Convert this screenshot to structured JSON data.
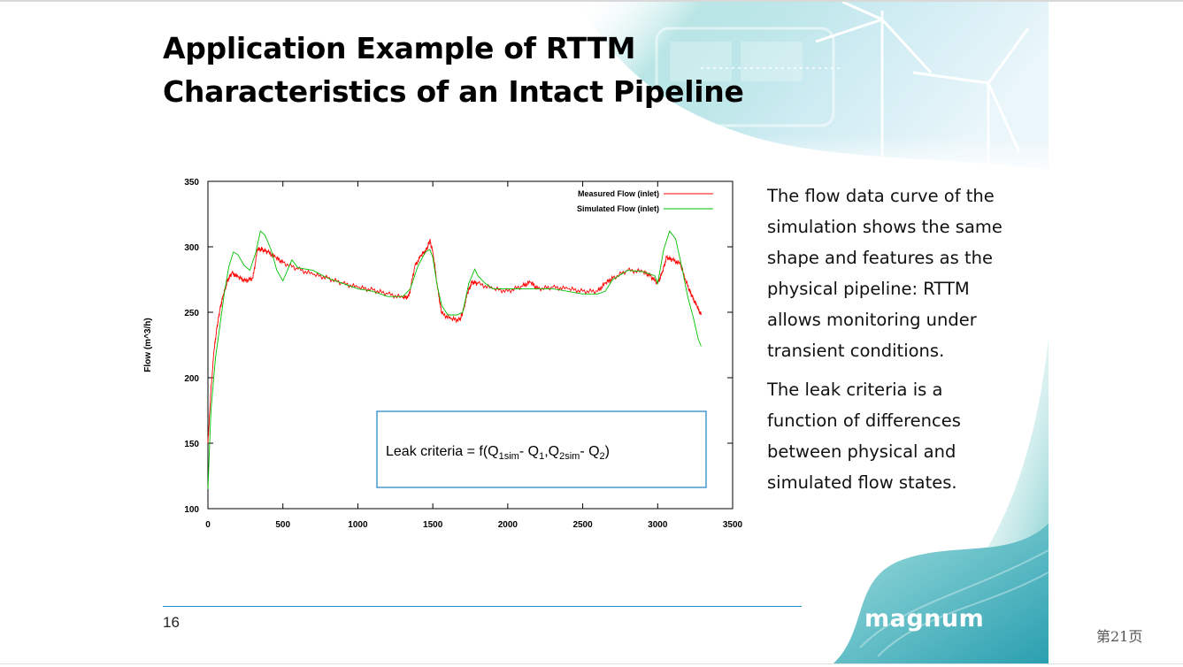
{
  "slide": {
    "title_line1": "Application Example of RTTM",
    "title_line2": "Characteristics of an Intact Pipeline",
    "body_paragraph1": "The flow data curve of the simulation shows the same shape and features as the physical pipeline: RTTM allows monitoring under transient conditions.",
    "body_paragraph2": "The leak criteria is a function of differences between physical and simulated flow states.",
    "slide_number": "16",
    "logo_text": "magnum",
    "accent_color": "#1a8fc7",
    "decoration_color": "#5fc4c4"
  },
  "viewer": {
    "page_indicator": "第21页"
  },
  "chart_data": {
    "type": "line",
    "ylabel": "Flow (m^3/h)",
    "xlabel": "",
    "xlim": [
      0,
      3500
    ],
    "ylim": [
      100,
      350
    ],
    "x_ticks": [
      "0",
      "500",
      "1000",
      "1500",
      "2000",
      "2500",
      "3000",
      "3500"
    ],
    "y_ticks": [
      "100",
      "150",
      "200",
      "250",
      "300",
      "350"
    ],
    "legend_position": "top-right",
    "series": [
      {
        "name": "Measured Flow (inlet)",
        "color": "#ff0000",
        "x": [
          0,
          20,
          40,
          60,
          80,
          100,
          130,
          160,
          200,
          250,
          300,
          330,
          360,
          400,
          450,
          500,
          600,
          700,
          800,
          900,
          1000,
          1100,
          1200,
          1300,
          1340,
          1380,
          1420,
          1460,
          1480,
          1500,
          1540,
          1560,
          1620,
          1680,
          1700,
          1730,
          1760,
          1800,
          1900,
          2000,
          2100,
          2150,
          2200,
          2300,
          2400,
          2500,
          2600,
          2650,
          2700,
          2800,
          2900,
          2950,
          3000,
          3030,
          3060,
          3100,
          3150,
          3200,
          3230,
          3260,
          3290
        ],
        "y": [
          150,
          190,
          220,
          238,
          252,
          262,
          274,
          280,
          277,
          274,
          276,
          298,
          298,
          296,
          292,
          288,
          283,
          279,
          276,
          272,
          269,
          267,
          264,
          261,
          262,
          285,
          293,
          298,
          305,
          296,
          262,
          249,
          245,
          244,
          250,
          264,
          273,
          272,
          268,
          266,
          270,
          273,
          268,
          269,
          268,
          266,
          266,
          272,
          276,
          282,
          281,
          278,
          272,
          280,
          292,
          290,
          287,
          270,
          262,
          255,
          248
        ]
      },
      {
        "name": "Simulated Flow (inlet)",
        "color": "#00c000",
        "x": [
          0,
          20,
          50,
          80,
          110,
          140,
          170,
          200,
          240,
          280,
          320,
          350,
          380,
          420,
          460,
          500,
          560,
          600,
          700,
          800,
          900,
          1000,
          1100,
          1200,
          1300,
          1350,
          1400,
          1450,
          1480,
          1500,
          1530,
          1560,
          1600,
          1660,
          1700,
          1740,
          1780,
          1800,
          1850,
          1900,
          2000,
          2100,
          2200,
          2300,
          2400,
          2500,
          2600,
          2650,
          2700,
          2800,
          2900,
          2980,
          3000,
          3040,
          3080,
          3120,
          3160,
          3200,
          3240,
          3270,
          3290
        ],
        "y": [
          115,
          175,
          215,
          240,
          265,
          285,
          296,
          294,
          286,
          282,
          296,
          312,
          309,
          298,
          282,
          274,
          290,
          284,
          282,
          276,
          272,
          268,
          266,
          262,
          262,
          268,
          285,
          296,
          298,
          292,
          270,
          255,
          248,
          248,
          250,
          272,
          283,
          278,
          272,
          268,
          268,
          268,
          268,
          268,
          266,
          264,
          264,
          266,
          275,
          282,
          281,
          278,
          272,
          298,
          312,
          306,
          285,
          262,
          245,
          230,
          224
        ]
      }
    ],
    "annotation": {
      "prefix": "Leak criteria = f(Q",
      "sub1": "1sim",
      "mid1": "- Q",
      "sub2": "1",
      "mid2": ",Q",
      "sub3": "2sim",
      "mid3": "- Q",
      "sub4": "2",
      "suffix": ")",
      "border_color": "#1a7fc0"
    }
  }
}
